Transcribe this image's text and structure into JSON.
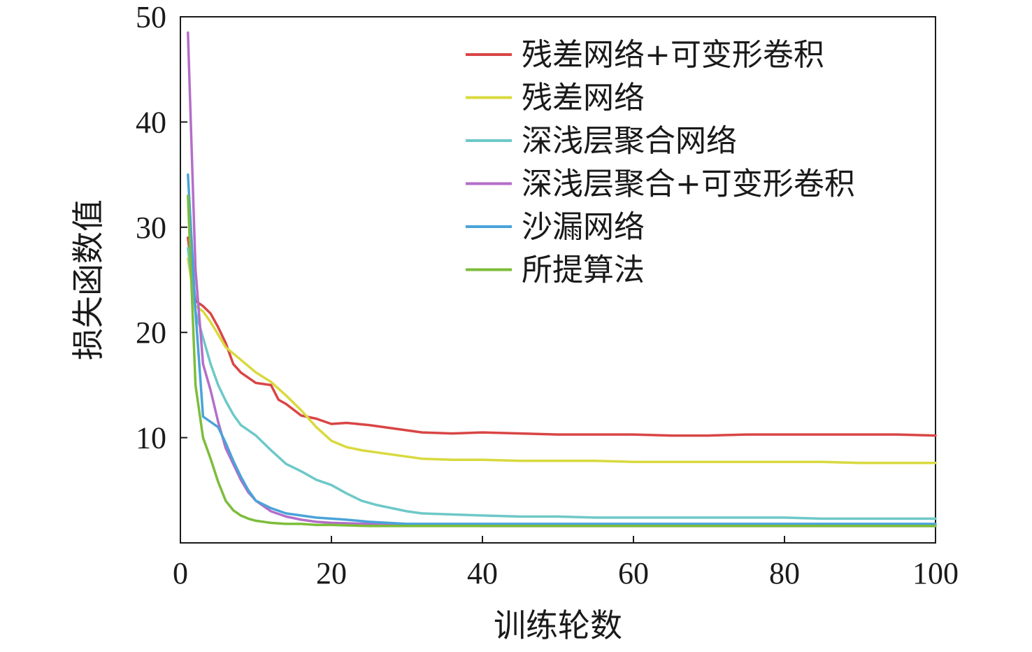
{
  "chart_data": {
    "type": "line",
    "title": "",
    "xlabel": "训练轮数",
    "ylabel": "损失函数值",
    "xlim": [
      0,
      100
    ],
    "ylim": [
      0,
      50
    ],
    "x_ticks": [
      "0",
      "20",
      "40",
      "60",
      "80",
      "100"
    ],
    "y_ticks": [
      "10",
      "20",
      "30",
      "40",
      "50"
    ],
    "grid": false,
    "legend_position": "top-right",
    "series": [
      {
        "name": "残差网络+可变形卷积",
        "color": "#d94545",
        "x": [
          1,
          2,
          3,
          4,
          5,
          6,
          7,
          8,
          10,
          12,
          13,
          14,
          16,
          18,
          20,
          22,
          25,
          28,
          32,
          36,
          40,
          45,
          50,
          55,
          60,
          65,
          70,
          75,
          80,
          85,
          90,
          95,
          100
        ],
        "y": [
          29.0,
          23.0,
          22.5,
          21.8,
          20.5,
          19.0,
          17.0,
          16.2,
          15.2,
          15.0,
          13.6,
          13.2,
          12.1,
          11.8,
          11.3,
          11.4,
          11.2,
          10.9,
          10.5,
          10.4,
          10.5,
          10.4,
          10.3,
          10.3,
          10.3,
          10.2,
          10.2,
          10.3,
          10.3,
          10.3,
          10.3,
          10.3,
          10.2
        ]
      },
      {
        "name": "残差网络",
        "color": "#d9d93e",
        "x": [
          1,
          2,
          3,
          4,
          5,
          6,
          7,
          8,
          10,
          12,
          14,
          16,
          18,
          20,
          22,
          24,
          26,
          28,
          30,
          32,
          36,
          40,
          45,
          50,
          55,
          60,
          65,
          70,
          75,
          80,
          85,
          90,
          95,
          100
        ],
        "y": [
          27.0,
          22.5,
          22.0,
          21.0,
          19.8,
          18.6,
          18.0,
          17.4,
          16.2,
          15.3,
          14.0,
          12.6,
          11.0,
          9.7,
          9.1,
          8.8,
          8.6,
          8.4,
          8.2,
          8.0,
          7.9,
          7.9,
          7.8,
          7.8,
          7.8,
          7.7,
          7.7,
          7.7,
          7.7,
          7.7,
          7.7,
          7.6,
          7.6,
          7.6
        ]
      },
      {
        "name": "深浅层聚合网络",
        "color": "#6ec8c8",
        "x": [
          1,
          2,
          3,
          4,
          5,
          6,
          7,
          8,
          10,
          12,
          14,
          16,
          18,
          20,
          22,
          24,
          26,
          28,
          30,
          32,
          36,
          40,
          45,
          50,
          55,
          60,
          65,
          70,
          75,
          80,
          85,
          90,
          95,
          100
        ],
        "y": [
          28.0,
          22.0,
          19.5,
          17.0,
          15.0,
          13.5,
          12.2,
          11.2,
          10.2,
          8.8,
          7.5,
          6.8,
          6.0,
          5.5,
          4.7,
          4.0,
          3.6,
          3.3,
          3.0,
          2.8,
          2.7,
          2.6,
          2.5,
          2.5,
          2.4,
          2.4,
          2.4,
          2.4,
          2.4,
          2.4,
          2.3,
          2.3,
          2.3,
          2.3
        ]
      },
      {
        "name": "深浅层聚合+可变形卷积",
        "color": "#b46ec8",
        "x": [
          1,
          2,
          3,
          4,
          5,
          6,
          7,
          8,
          9,
          10,
          12,
          14,
          16,
          18,
          20,
          25,
          30,
          40,
          50,
          60,
          70,
          80,
          90,
          100
        ],
        "y": [
          48.5,
          26.0,
          17.0,
          14.5,
          11.5,
          9.0,
          7.5,
          6.0,
          4.8,
          4.0,
          3.0,
          2.5,
          2.2,
          2.0,
          1.9,
          1.8,
          1.7,
          1.6,
          1.6,
          1.6,
          1.6,
          1.6,
          1.6,
          1.6
        ]
      },
      {
        "name": "沙漏网络",
        "color": "#4aa3d9",
        "x": [
          1,
          2,
          3,
          4,
          5,
          6,
          7,
          8,
          9,
          10,
          12,
          14,
          16,
          18,
          20,
          22,
          25,
          30,
          40,
          50,
          60,
          70,
          80,
          90,
          100
        ],
        "y": [
          35.0,
          22.0,
          12.0,
          11.5,
          11.0,
          9.5,
          7.8,
          6.3,
          5.0,
          4.0,
          3.3,
          2.8,
          2.6,
          2.4,
          2.3,
          2.2,
          2.0,
          1.8,
          1.8,
          1.8,
          1.8,
          1.8,
          1.8,
          1.8,
          1.8
        ]
      },
      {
        "name": "所提算法",
        "color": "#7dbd3a",
        "x": [
          1,
          2,
          3,
          4,
          5,
          6,
          7,
          8,
          9,
          10,
          12,
          14,
          16,
          18,
          20,
          25,
          30,
          40,
          50,
          60,
          70,
          80,
          90,
          100
        ],
        "y": [
          33.0,
          15.0,
          10.0,
          8.0,
          5.8,
          4.0,
          3.1,
          2.6,
          2.3,
          2.1,
          1.9,
          1.8,
          1.8,
          1.7,
          1.7,
          1.6,
          1.6,
          1.6,
          1.6,
          1.6,
          1.6,
          1.6,
          1.6,
          1.6
        ]
      }
    ]
  }
}
